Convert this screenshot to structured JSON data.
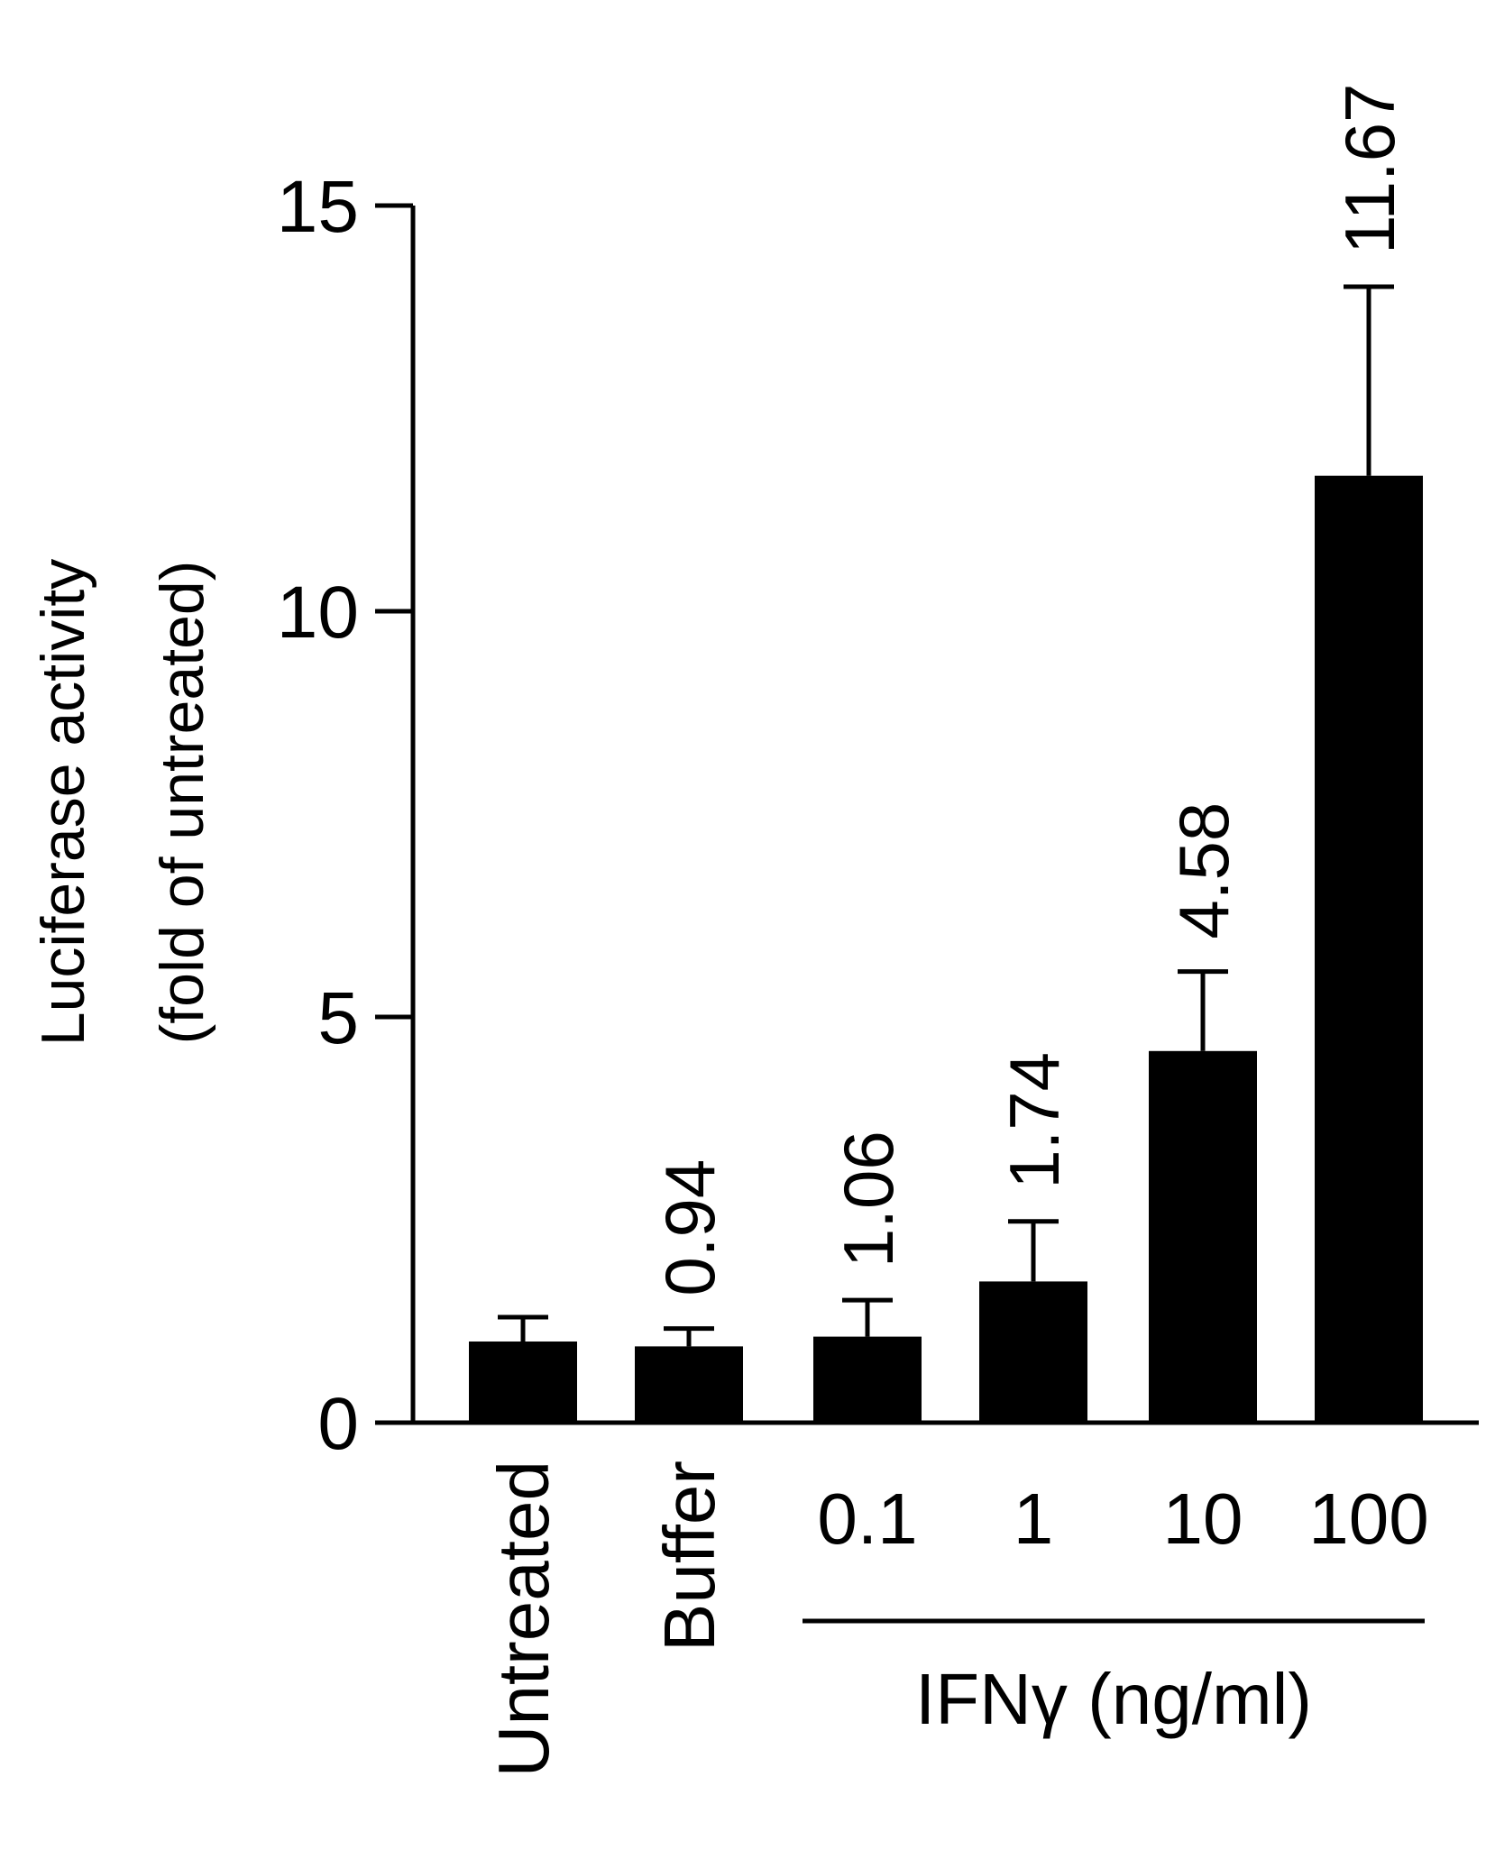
{
  "chart_data": {
    "type": "bar",
    "ylabel_line1": "Luciferase activity",
    "ylabel_line2": "(fold of untreated)",
    "ylim": [
      0,
      15
    ],
    "yticks": [
      "0",
      "5",
      "10",
      "15"
    ],
    "categories": [
      "Untreated",
      "Buffer",
      "0.1",
      "1",
      "10",
      "100"
    ],
    "values": [
      1.0,
      0.94,
      1.06,
      1.74,
      4.58,
      11.67
    ],
    "errors": [
      0.3,
      0.22,
      0.45,
      0.74,
      0.98,
      2.33
    ],
    "value_labels": [
      "",
      "0.94",
      "1.06",
      "1.74",
      "4.58",
      "11.67"
    ],
    "group_label": "IFNγ (ng/ml)",
    "bar_color": "#000000",
    "grid": false,
    "legend": "none"
  }
}
